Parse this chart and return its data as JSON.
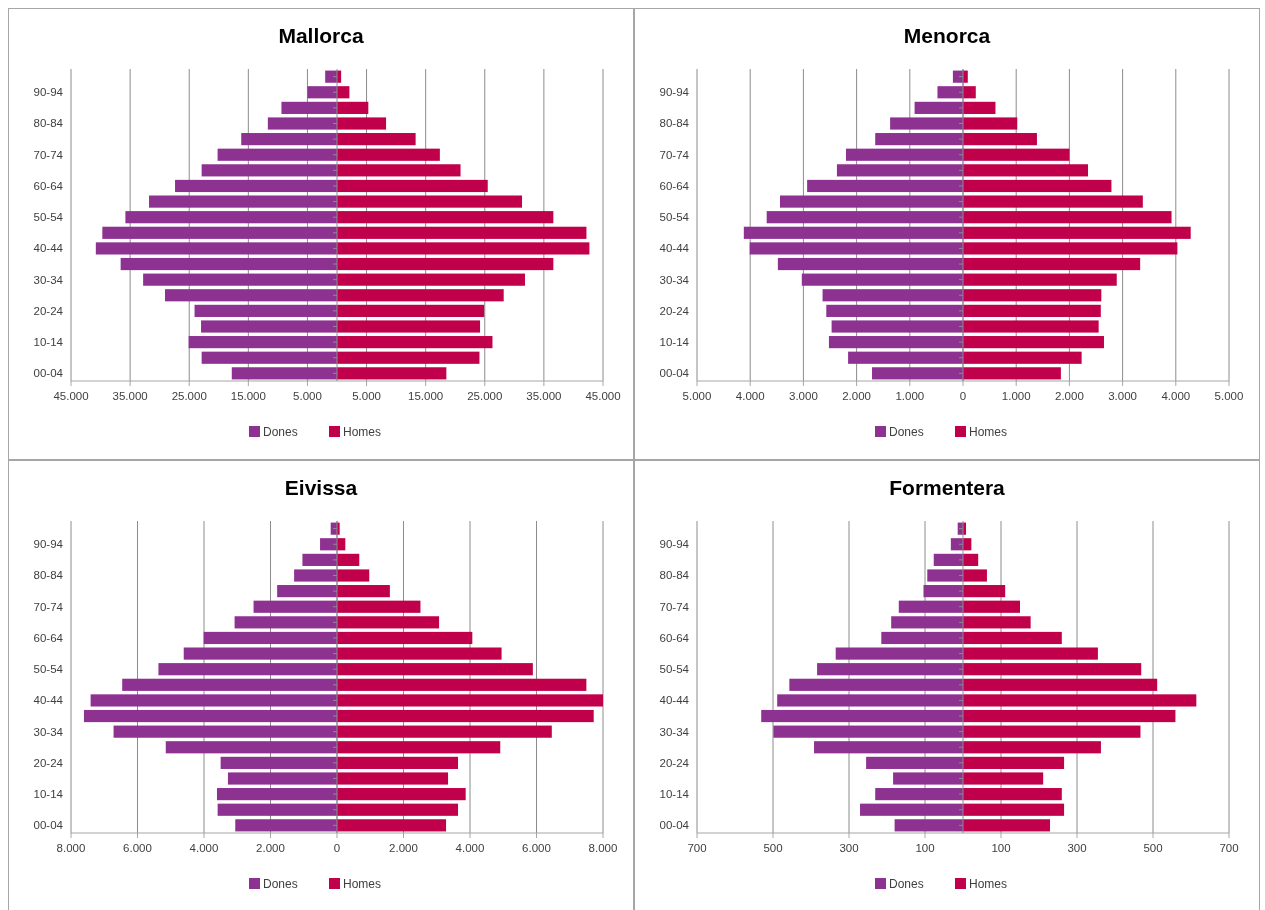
{
  "chart_data": [
    {
      "type": "bar",
      "title": "Mallorca",
      "orientation": "horizontal",
      "stacked": true,
      "grid": "x",
      "legend": "bottom",
      "categories": [
        null,
        "90-94",
        null,
        "80-84",
        null,
        "70-74",
        null,
        "60-64",
        null,
        "50-54",
        null,
        "40-44",
        null,
        "30-34",
        null,
        "20-24",
        null,
        "10-14",
        null,
        "00-04"
      ],
      "xlim": [
        -45000,
        45000
      ],
      "xticks": [
        {
          "value": -45000,
          "label": "45.000"
        },
        {
          "value": -35000,
          "label": "35.000"
        },
        {
          "value": -25000,
          "label": "25.000"
        },
        {
          "value": -15000,
          "label": "15.000"
        },
        {
          "value": -5000,
          "label": "5.000"
        },
        {
          "value": 5000,
          "label": "5.000"
        },
        {
          "value": 15000,
          "label": "15.000"
        },
        {
          "value": 25000,
          "label": "25.000"
        },
        {
          "value": 35000,
          "label": "35.000"
        },
        {
          "value": 45000,
          "label": "45.000"
        }
      ],
      "series": [
        {
          "name": "Dones",
          "color": "#8e3292",
          "values": [
            -2000,
            -5000,
            -9400,
            -11700,
            -16200,
            -20200,
            -22900,
            -27400,
            -31800,
            -35800,
            -39700,
            -40800,
            -36600,
            -32800,
            -29100,
            -24100,
            -23000,
            -25100,
            -22900,
            -17800
          ]
        },
        {
          "name": "Homes",
          "color": "#c0004a",
          "values": [
            700,
            2100,
            5300,
            8300,
            13300,
            17400,
            20900,
            25500,
            31300,
            36600,
            42200,
            42700,
            36600,
            31800,
            28200,
            24900,
            24200,
            26300,
            24100,
            18500
          ]
        }
      ]
    },
    {
      "type": "bar",
      "title": "Menorca",
      "orientation": "horizontal",
      "stacked": true,
      "grid": "x",
      "legend": "bottom",
      "categories": [
        null,
        "90-94",
        null,
        "80-84",
        null,
        "70-74",
        null,
        "60-64",
        null,
        "50-54",
        null,
        "40-44",
        null,
        "30-34",
        null,
        "20-24",
        null,
        "10-14",
        null,
        "00-04"
      ],
      "xlim": [
        -5000,
        5000
      ],
      "xticks": [
        {
          "value": -5000,
          "label": "5.000"
        },
        {
          "value": -4000,
          "label": "4.000"
        },
        {
          "value": -3000,
          "label": "3.000"
        },
        {
          "value": -2000,
          "label": "2.000"
        },
        {
          "value": -1000,
          "label": "1.000"
        },
        0,
        {
          "value": 1000,
          "label": "1.000"
        },
        {
          "value": 2000,
          "label": "2.000"
        },
        {
          "value": 3000,
          "label": "3.000"
        },
        {
          "value": 4000,
          "label": "4.000"
        },
        {
          "value": 5000,
          "label": "5.000"
        }
      ],
      "series": [
        {
          "name": "Dones",
          "color": "#8e3292",
          "values": [
            -190,
            -480,
            -910,
            -1370,
            -1650,
            -2200,
            -2370,
            -2930,
            -3440,
            -3690,
            -4120,
            -4010,
            -3480,
            -3030,
            -2640,
            -2570,
            -2470,
            -2520,
            -2160,
            -1710
          ]
        },
        {
          "name": "Homes",
          "color": "#c0004a",
          "values": [
            90,
            240,
            610,
            1020,
            1390,
            2000,
            2350,
            2790,
            3380,
            3920,
            4280,
            4030,
            3330,
            2890,
            2600,
            2590,
            2550,
            2650,
            2230,
            1840
          ]
        }
      ]
    },
    {
      "type": "bar",
      "title": "Eivissa",
      "orientation": "horizontal",
      "stacked": true,
      "grid": "x",
      "legend": "bottom",
      "categories": [
        null,
        "90-94",
        null,
        "80-84",
        null,
        "70-74",
        null,
        "60-64",
        null,
        "50-54",
        null,
        "40-44",
        null,
        "30-34",
        null,
        "20-24",
        null,
        "10-14",
        null,
        "00-04"
      ],
      "xlim": [
        -8000,
        8000
      ],
      "xticks": [
        {
          "value": -8000,
          "label": "8.000"
        },
        {
          "value": -6000,
          "label": "6.000"
        },
        {
          "value": -4000,
          "label": "4.000"
        },
        {
          "value": -2000,
          "label": "2.000"
        },
        0,
        {
          "value": 2000,
          "label": "2.000"
        },
        {
          "value": 4000,
          "label": "4.000"
        },
        {
          "value": 6000,
          "label": "6.000"
        },
        {
          "value": 8000,
          "label": "8.000"
        }
      ],
      "series": [
        {
          "name": "Dones",
          "color": "#8e3292",
          "values": [
            -190,
            -510,
            -1040,
            -1290,
            -1800,
            -2510,
            -3080,
            -4010,
            -4610,
            -5370,
            -6460,
            -7410,
            -7610,
            -6720,
            -5150,
            -3500,
            -3280,
            -3610,
            -3590,
            -3060
          ]
        },
        {
          "name": "Homes",
          "color": "#c0004a",
          "values": [
            80,
            250,
            670,
            970,
            1590,
            2510,
            3070,
            4070,
            4950,
            5890,
            7500,
            8000,
            7720,
            6460,
            4910,
            3640,
            3340,
            3870,
            3640,
            3280
          ]
        }
      ]
    },
    {
      "type": "bar",
      "title": "Formentera",
      "orientation": "horizontal",
      "stacked": true,
      "grid": "x",
      "legend": "bottom",
      "categories": [
        null,
        "90-94",
        null,
        "80-84",
        null,
        "70-74",
        null,
        "60-64",
        null,
        "50-54",
        null,
        "40-44",
        null,
        "30-34",
        null,
        "20-24",
        null,
        "10-14",
        null,
        "00-04"
      ],
      "xlim": [
        -700,
        700
      ],
      "xticks": [
        {
          "value": -700,
          "label": "700"
        },
        {
          "value": -500,
          "label": "500"
        },
        {
          "value": -300,
          "label": "300"
        },
        {
          "value": -100,
          "label": "100"
        },
        {
          "value": 100,
          "label": "100"
        },
        {
          "value": 300,
          "label": "300"
        },
        {
          "value": 500,
          "label": "500"
        },
        {
          "value": 700,
          "label": "700"
        }
      ],
      "series": [
        {
          "name": "Dones",
          "color": "#8e3292",
          "values": [
            -14,
            -32,
            -77,
            -94,
            -104,
            -169,
            -189,
            -215,
            -335,
            -384,
            -457,
            -489,
            -531,
            -499,
            -392,
            -255,
            -184,
            -231,
            -271,
            -180
          ]
        },
        {
          "name": "Homes",
          "color": "#c0004a",
          "values": [
            8,
            22,
            40,
            63,
            111,
            150,
            178,
            260,
            355,
            469,
            511,
            614,
            559,
            467,
            363,
            266,
            211,
            260,
            266,
            229
          ]
        }
      ]
    }
  ]
}
